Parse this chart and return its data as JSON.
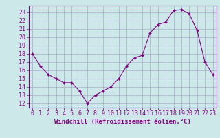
{
  "points_x": [
    0,
    1,
    2,
    3,
    4,
    5,
    6,
    7,
    8,
    9,
    10,
    11,
    12,
    13,
    14,
    15,
    16,
    17,
    18,
    19,
    20,
    21,
    22,
    23
  ],
  "points_y": [
    18,
    16.5,
    15.5,
    15,
    14.5,
    14.5,
    13.5,
    12,
    13,
    13.5,
    14,
    15,
    16.5,
    17.5,
    17.8,
    20.5,
    21.5,
    21.8,
    23.2,
    23.3,
    22.8,
    20.8,
    17,
    15.5
  ],
  "line_color": "#800080",
  "marker_color": "#800080",
  "bg_color": "#cce8e8",
  "grid_color": "#aaaacc",
  "xlabel": "Windchill (Refroidissement éolien,°C)",
  "xlim": [
    -0.5,
    23.5
  ],
  "ylim": [
    11.5,
    23.8
  ],
  "yticks": [
    12,
    13,
    14,
    15,
    16,
    17,
    18,
    19,
    20,
    21,
    22,
    23
  ],
  "xticks": [
    0,
    1,
    2,
    3,
    4,
    5,
    6,
    7,
    8,
    9,
    10,
    11,
    12,
    13,
    14,
    15,
    16,
    17,
    18,
    19,
    20,
    21,
    22,
    23
  ],
  "xlabel_fontsize": 6.5,
  "tick_fontsize": 6,
  "spine_color": "#800080"
}
